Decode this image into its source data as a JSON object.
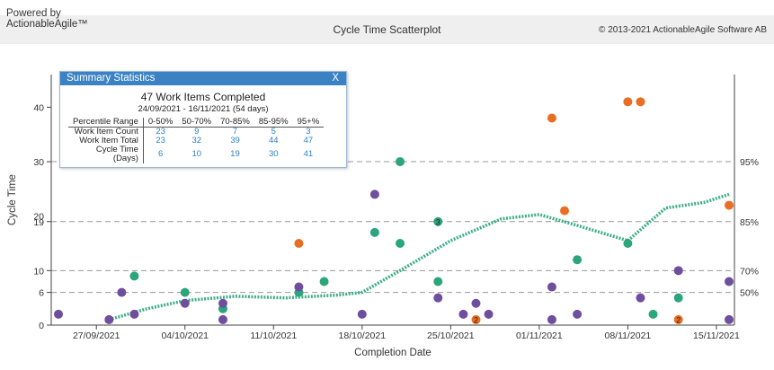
{
  "header": {
    "powered_line1": "Powered by",
    "powered_line2": "ActionableAgile™",
    "title": "Cycle Time Scatterplot",
    "copyright": "© 2013-2021 ActionableAgile Software AB"
  },
  "summary": {
    "header_label": "Summary Statistics",
    "close_label": "X",
    "title": "47 Work Items Completed",
    "subtitle": "24/09/2021 - 16/11/2021 (54 days)",
    "columns": [
      "Percentile Range",
      "0-50%",
      "50-70%",
      "70-85%",
      "85-95%",
      "95+%"
    ],
    "rows": [
      {
        "label": "Work Item Count",
        "values": [
          "23",
          "9",
          "7",
          "5",
          "3"
        ]
      },
      {
        "label": "Work Item Total",
        "values": [
          "23",
          "32",
          "39",
          "44",
          "47"
        ]
      },
      {
        "label_line1": "Cycle Time",
        "label_line2": "(Days)",
        "values": [
          "6",
          "10",
          "19",
          "30",
          "41"
        ]
      }
    ]
  },
  "chart_data": {
    "type": "scatter",
    "xlabel": "Completion Date",
    "ylabel": "Cycle Time",
    "xlim": [
      "2021-09-24",
      "2021-11-16"
    ],
    "ylim": [
      0,
      46
    ],
    "x_ticks": [
      "27/09/2021",
      "04/10/2021",
      "11/10/2021",
      "18/10/2021",
      "25/10/2021",
      "01/11/2021",
      "08/11/2021",
      "15/11/2021"
    ],
    "x_tick_dates": [
      "2021-09-27",
      "2021-10-04",
      "2021-10-11",
      "2021-10-18",
      "2021-10-25",
      "2021-11-01",
      "2021-11-08",
      "2021-11-15"
    ],
    "y_ticks": [
      0,
      6,
      10,
      19,
      30,
      40
    ],
    "extra_ticks": [
      "20"
    ],
    "percentile_lines": [
      {
        "label": "50%",
        "value": 6
      },
      {
        "label": "70%",
        "value": 10
      },
      {
        "label": "85%",
        "value": 19
      },
      {
        "label": "95%",
        "value": 30
      }
    ],
    "colors": {
      "purple": "#6f4e9e",
      "green": "#2ba57a",
      "orange": "#ea6e22",
      "trend": "#2ba57a",
      "grid": "#999999"
    },
    "points": [
      {
        "date": "2021-09-24",
        "y": 2,
        "color": "purple"
      },
      {
        "date": "2021-09-28",
        "y": 1,
        "color": "purple"
      },
      {
        "date": "2021-09-29",
        "y": 6,
        "color": "purple"
      },
      {
        "date": "2021-09-30",
        "y": 2,
        "color": "purple"
      },
      {
        "date": "2021-09-30",
        "y": 9,
        "color": "green"
      },
      {
        "date": "2021-10-04",
        "y": 4,
        "color": "purple"
      },
      {
        "date": "2021-10-04",
        "y": 6,
        "color": "green"
      },
      {
        "date": "2021-10-07",
        "y": 1,
        "color": "purple"
      },
      {
        "date": "2021-10-07",
        "y": 3,
        "color": "green"
      },
      {
        "date": "2021-10-07",
        "y": 4,
        "color": "purple"
      },
      {
        "date": "2021-10-13",
        "y": 15,
        "color": "orange"
      },
      {
        "date": "2021-10-13",
        "y": 6,
        "color": "green"
      },
      {
        "date": "2021-10-13",
        "y": 7,
        "color": "purple"
      },
      {
        "date": "2021-10-15",
        "y": 8,
        "color": "green"
      },
      {
        "date": "2021-10-18",
        "y": 2,
        "color": "purple"
      },
      {
        "date": "2021-10-19",
        "y": 24,
        "color": "purple"
      },
      {
        "date": "2021-10-19",
        "y": 17,
        "color": "green"
      },
      {
        "date": "2021-10-21",
        "y": 30,
        "color": "green"
      },
      {
        "date": "2021-10-21",
        "y": 15,
        "color": "green"
      },
      {
        "date": "2021-10-24",
        "y": 19,
        "color": "green",
        "count": "3"
      },
      {
        "date": "2021-10-24",
        "y": 8,
        "color": "green"
      },
      {
        "date": "2021-10-24",
        "y": 5,
        "color": "purple"
      },
      {
        "date": "2021-10-26",
        "y": 2,
        "color": "purple"
      },
      {
        "date": "2021-10-27",
        "y": 4,
        "color": "purple"
      },
      {
        "date": "2021-10-27",
        "y": 1,
        "color": "orange",
        "count": "2"
      },
      {
        "date": "2021-10-28",
        "y": 2,
        "color": "purple"
      },
      {
        "date": "2021-11-02",
        "y": 38,
        "color": "orange"
      },
      {
        "date": "2021-11-02",
        "y": 7,
        "color": "purple"
      },
      {
        "date": "2021-11-02",
        "y": 1,
        "color": "purple"
      },
      {
        "date": "2021-11-03",
        "y": 21,
        "color": "orange"
      },
      {
        "date": "2021-11-04",
        "y": 12,
        "color": "green"
      },
      {
        "date": "2021-11-04",
        "y": 2,
        "color": "purple"
      },
      {
        "date": "2021-11-08",
        "y": 41,
        "color": "orange"
      },
      {
        "date": "2021-11-08",
        "y": 15,
        "color": "green"
      },
      {
        "date": "2021-11-09",
        "y": 41,
        "color": "orange"
      },
      {
        "date": "2021-11-09",
        "y": 5,
        "color": "purple"
      },
      {
        "date": "2021-11-10",
        "y": 2,
        "color": "green"
      },
      {
        "date": "2021-11-12",
        "y": 10,
        "color": "purple"
      },
      {
        "date": "2021-11-12",
        "y": 5,
        "color": "green"
      },
      {
        "date": "2021-11-12",
        "y": 1,
        "color": "orange",
        "count": "2"
      },
      {
        "date": "2021-11-16",
        "y": 22,
        "color": "orange"
      },
      {
        "date": "2021-11-16",
        "y": 8,
        "color": "purple"
      },
      {
        "date": "2021-11-16",
        "y": 1,
        "color": "purple"
      }
    ],
    "trend": [
      {
        "date": "2021-09-28",
        "y": 1.0
      },
      {
        "date": "2021-10-01",
        "y": 3.0
      },
      {
        "date": "2021-10-04",
        "y": 4.5
      },
      {
        "date": "2021-10-08",
        "y": 5.3
      },
      {
        "date": "2021-10-12",
        "y": 5.0
      },
      {
        "date": "2021-10-16",
        "y": 5.5
      },
      {
        "date": "2021-10-18",
        "y": 6.0
      },
      {
        "date": "2021-10-21",
        "y": 10.0
      },
      {
        "date": "2021-10-25",
        "y": 15.5
      },
      {
        "date": "2021-10-29",
        "y": 19.5
      },
      {
        "date": "2021-11-01",
        "y": 20.3
      },
      {
        "date": "2021-11-04",
        "y": 18.3
      },
      {
        "date": "2021-11-08",
        "y": 15.5
      },
      {
        "date": "2021-11-11",
        "y": 21.5
      },
      {
        "date": "2021-11-14",
        "y": 22.5
      },
      {
        "date": "2021-11-16",
        "y": 24.0
      }
    ]
  }
}
